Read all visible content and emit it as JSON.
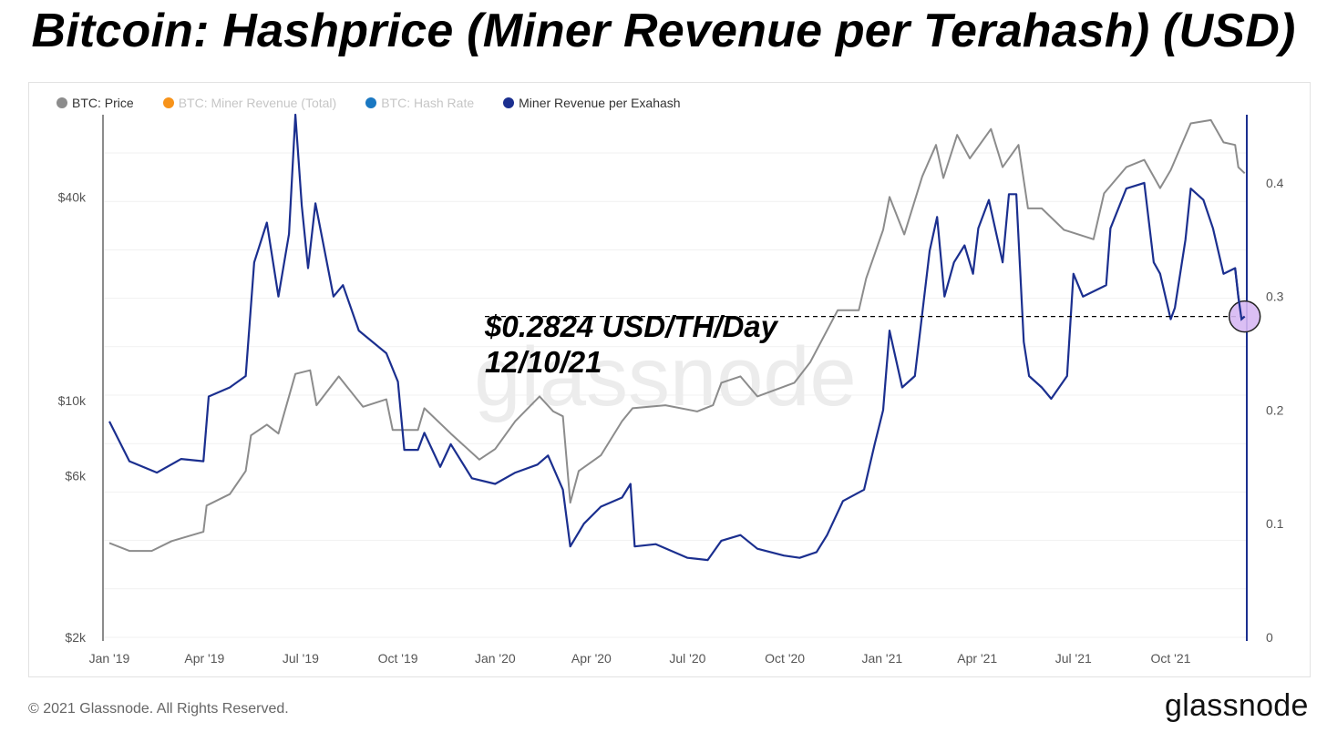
{
  "title": "Bitcoin: Hashprice (Miner Revenue per Terahash) (USD)",
  "footer": {
    "copyright": "© 2021 Glassnode. All Rights Reserved.",
    "logo": "glassnode"
  },
  "watermark": "glassnode",
  "colors": {
    "price": "#8c8c8c",
    "revenue_total": "#f7931a",
    "hash_rate": "#1a78c2",
    "hashprice": "#1b2f8f",
    "highlight": "#d7b8f3"
  },
  "chart_data": {
    "type": "line",
    "title": "Bitcoin: Hashprice (Miner Revenue per Terahash) (USD)",
    "legend": [
      {
        "name": "BTC: Price",
        "color": "#8c8c8c",
        "active": true
      },
      {
        "name": "BTC: Miner Revenue (Total)",
        "color": "#f7931a",
        "active": false
      },
      {
        "name": "BTC: Hash Rate",
        "color": "#1a78c2",
        "active": false
      },
      {
        "name": "Miner Revenue per Exahash",
        "color": "#1b2f8f",
        "active": true
      }
    ],
    "legend_position": "top-left",
    "x_range": [
      "2018-12-26",
      "2021-12-12"
    ],
    "x_ticks": [
      "Jan '19",
      "Apr '19",
      "Jul '19",
      "Oct '19",
      "Jan '20",
      "Apr '20",
      "Jul '20",
      "Oct '20",
      "Jan '21",
      "Apr '21",
      "Jul '21",
      "Oct '21"
    ],
    "y_left": {
      "scale": "log",
      "range": [
        2000,
        70000
      ],
      "ticks": [
        "$2k",
        "$6k",
        "$10k",
        "$40k"
      ]
    },
    "y_right": {
      "scale": "linear",
      "range": [
        0,
        0.46
      ],
      "ticks": [
        "0",
        "0.1",
        "0.2",
        "0.3",
        "0.4"
      ]
    },
    "grid": true,
    "series": [
      {
        "name": "BTC: Price",
        "axis": "left",
        "points": [
          [
            "2019-01-01",
            3800
          ],
          [
            "2019-01-20",
            3600
          ],
          [
            "2019-02-10",
            3600
          ],
          [
            "2019-03-01",
            3850
          ],
          [
            "2019-03-31",
            4100
          ],
          [
            "2019-04-03",
            4900
          ],
          [
            "2019-04-25",
            5300
          ],
          [
            "2019-05-10",
            6200
          ],
          [
            "2019-05-15",
            7900
          ],
          [
            "2019-05-30",
            8500
          ],
          [
            "2019-06-10",
            8000
          ],
          [
            "2019-06-26",
            12000
          ],
          [
            "2019-07-10",
            12300
          ],
          [
            "2019-07-16",
            9700
          ],
          [
            "2019-08-06",
            11800
          ],
          [
            "2019-08-29",
            9600
          ],
          [
            "2019-09-20",
            10100
          ],
          [
            "2019-09-26",
            8200
          ],
          [
            "2019-10-20",
            8200
          ],
          [
            "2019-10-26",
            9500
          ],
          [
            "2019-11-20",
            8000
          ],
          [
            "2019-12-17",
            6700
          ],
          [
            "2020-01-01",
            7200
          ],
          [
            "2020-01-20",
            8700
          ],
          [
            "2020-02-12",
            10300
          ],
          [
            "2020-02-25",
            9300
          ],
          [
            "2020-03-05",
            9000
          ],
          [
            "2020-03-12",
            5000
          ],
          [
            "2020-03-20",
            6200
          ],
          [
            "2020-04-10",
            6900
          ],
          [
            "2020-04-30",
            8700
          ],
          [
            "2020-05-10",
            9500
          ],
          [
            "2020-06-10",
            9700
          ],
          [
            "2020-07-10",
            9300
          ],
          [
            "2020-07-25",
            9700
          ],
          [
            "2020-08-02",
            11300
          ],
          [
            "2020-08-20",
            11800
          ],
          [
            "2020-09-05",
            10300
          ],
          [
            "2020-10-10",
            11300
          ],
          [
            "2020-10-25",
            13000
          ],
          [
            "2020-11-20",
            18500
          ],
          [
            "2020-12-10",
            18500
          ],
          [
            "2020-12-17",
            23000
          ],
          [
            "2021-01-02",
            32000
          ],
          [
            "2021-01-08",
            40000
          ],
          [
            "2021-01-22",
            31000
          ],
          [
            "2021-02-08",
            46000
          ],
          [
            "2021-02-21",
            57000
          ],
          [
            "2021-02-28",
            45500
          ],
          [
            "2021-03-13",
            61000
          ],
          [
            "2021-03-25",
            52000
          ],
          [
            "2021-04-14",
            63500
          ],
          [
            "2021-04-25",
            49000
          ],
          [
            "2021-05-10",
            57000
          ],
          [
            "2021-05-19",
            37000
          ],
          [
            "2021-06-01",
            37000
          ],
          [
            "2021-06-22",
            32000
          ],
          [
            "2021-07-20",
            30000
          ],
          [
            "2021-07-30",
            41000
          ],
          [
            "2021-08-20",
            49000
          ],
          [
            "2021-09-06",
            51500
          ],
          [
            "2021-09-21",
            42500
          ],
          [
            "2021-10-01",
            48000
          ],
          [
            "2021-10-20",
            66000
          ],
          [
            "2021-11-08",
            67500
          ],
          [
            "2021-11-20",
            58000
          ],
          [
            "2021-12-01",
            57000
          ],
          [
            "2021-12-04",
            49000
          ],
          [
            "2021-12-10",
            47000
          ]
        ]
      },
      {
        "name": "Miner Revenue per Exahash",
        "axis": "right",
        "points": [
          [
            "2019-01-01",
            0.19
          ],
          [
            "2019-01-20",
            0.155
          ],
          [
            "2019-02-15",
            0.145
          ],
          [
            "2019-03-10",
            0.157
          ],
          [
            "2019-03-31",
            0.155
          ],
          [
            "2019-04-05",
            0.212
          ],
          [
            "2019-04-25",
            0.22
          ],
          [
            "2019-05-10",
            0.23
          ],
          [
            "2019-05-18",
            0.33
          ],
          [
            "2019-05-30",
            0.365
          ],
          [
            "2019-06-10",
            0.3
          ],
          [
            "2019-06-20",
            0.355
          ],
          [
            "2019-06-26",
            0.46
          ],
          [
            "2019-07-02",
            0.38
          ],
          [
            "2019-07-08",
            0.325
          ],
          [
            "2019-07-15",
            0.382
          ],
          [
            "2019-08-01",
            0.3
          ],
          [
            "2019-08-10",
            0.31
          ],
          [
            "2019-08-25",
            0.27
          ],
          [
            "2019-09-20",
            0.25
          ],
          [
            "2019-10-01",
            0.225
          ],
          [
            "2019-10-07",
            0.165
          ],
          [
            "2019-10-20",
            0.165
          ],
          [
            "2019-10-26",
            0.18
          ],
          [
            "2019-11-10",
            0.15
          ],
          [
            "2019-11-20",
            0.17
          ],
          [
            "2019-12-10",
            0.14
          ],
          [
            "2020-01-01",
            0.135
          ],
          [
            "2020-01-20",
            0.145
          ],
          [
            "2020-02-10",
            0.152
          ],
          [
            "2020-02-20",
            0.16
          ],
          [
            "2020-03-05",
            0.13
          ],
          [
            "2020-03-12",
            0.08
          ],
          [
            "2020-03-25",
            0.1
          ],
          [
            "2020-04-10",
            0.115
          ],
          [
            "2020-04-30",
            0.123
          ],
          [
            "2020-05-08",
            0.135
          ],
          [
            "2020-05-12",
            0.08
          ],
          [
            "2020-06-01",
            0.082
          ],
          [
            "2020-07-01",
            0.07
          ],
          [
            "2020-07-20",
            0.068
          ],
          [
            "2020-08-02",
            0.085
          ],
          [
            "2020-08-20",
            0.09
          ],
          [
            "2020-09-05",
            0.078
          ],
          [
            "2020-09-30",
            0.072
          ],
          [
            "2020-10-15",
            0.07
          ],
          [
            "2020-10-31",
            0.075
          ],
          [
            "2020-11-10",
            0.09
          ],
          [
            "2020-11-25",
            0.12
          ],
          [
            "2020-12-15",
            0.13
          ],
          [
            "2020-12-25",
            0.17
          ],
          [
            "2021-01-02",
            0.2
          ],
          [
            "2021-01-08",
            0.27
          ],
          [
            "2021-01-20",
            0.22
          ],
          [
            "2021-02-01",
            0.23
          ],
          [
            "2021-02-15",
            0.34
          ],
          [
            "2021-02-22",
            0.37
          ],
          [
            "2021-03-01",
            0.3
          ],
          [
            "2021-03-10",
            0.33
          ],
          [
            "2021-03-20",
            0.345
          ],
          [
            "2021-03-28",
            0.32
          ],
          [
            "2021-04-02",
            0.36
          ],
          [
            "2021-04-12",
            0.385
          ],
          [
            "2021-04-25",
            0.33
          ],
          [
            "2021-05-01",
            0.39
          ],
          [
            "2021-05-08",
            0.39
          ],
          [
            "2021-05-15",
            0.26
          ],
          [
            "2021-05-20",
            0.23
          ],
          [
            "2021-06-01",
            0.22
          ],
          [
            "2021-06-10",
            0.21
          ],
          [
            "2021-06-25",
            0.23
          ],
          [
            "2021-07-01",
            0.32
          ],
          [
            "2021-07-10",
            0.3
          ],
          [
            "2021-08-01",
            0.31
          ],
          [
            "2021-08-05",
            0.36
          ],
          [
            "2021-08-20",
            0.395
          ],
          [
            "2021-09-06",
            0.4
          ],
          [
            "2021-09-15",
            0.33
          ],
          [
            "2021-09-21",
            0.32
          ],
          [
            "2021-10-01",
            0.28
          ],
          [
            "2021-10-05",
            0.29
          ],
          [
            "2021-10-15",
            0.35
          ],
          [
            "2021-10-20",
            0.395
          ],
          [
            "2021-11-01",
            0.385
          ],
          [
            "2021-11-10",
            0.36
          ],
          [
            "2021-11-20",
            0.32
          ],
          [
            "2021-12-01",
            0.325
          ],
          [
            "2021-12-04",
            0.3
          ],
          [
            "2021-12-07",
            0.28
          ],
          [
            "2021-12-10",
            0.2824
          ]
        ]
      }
    ],
    "annotations": [
      {
        "text_value": "$0.2824 USD/TH/Day",
        "text_date": "12/10/21",
        "date": "2021-12-10",
        "value": 0.2824
      }
    ]
  }
}
